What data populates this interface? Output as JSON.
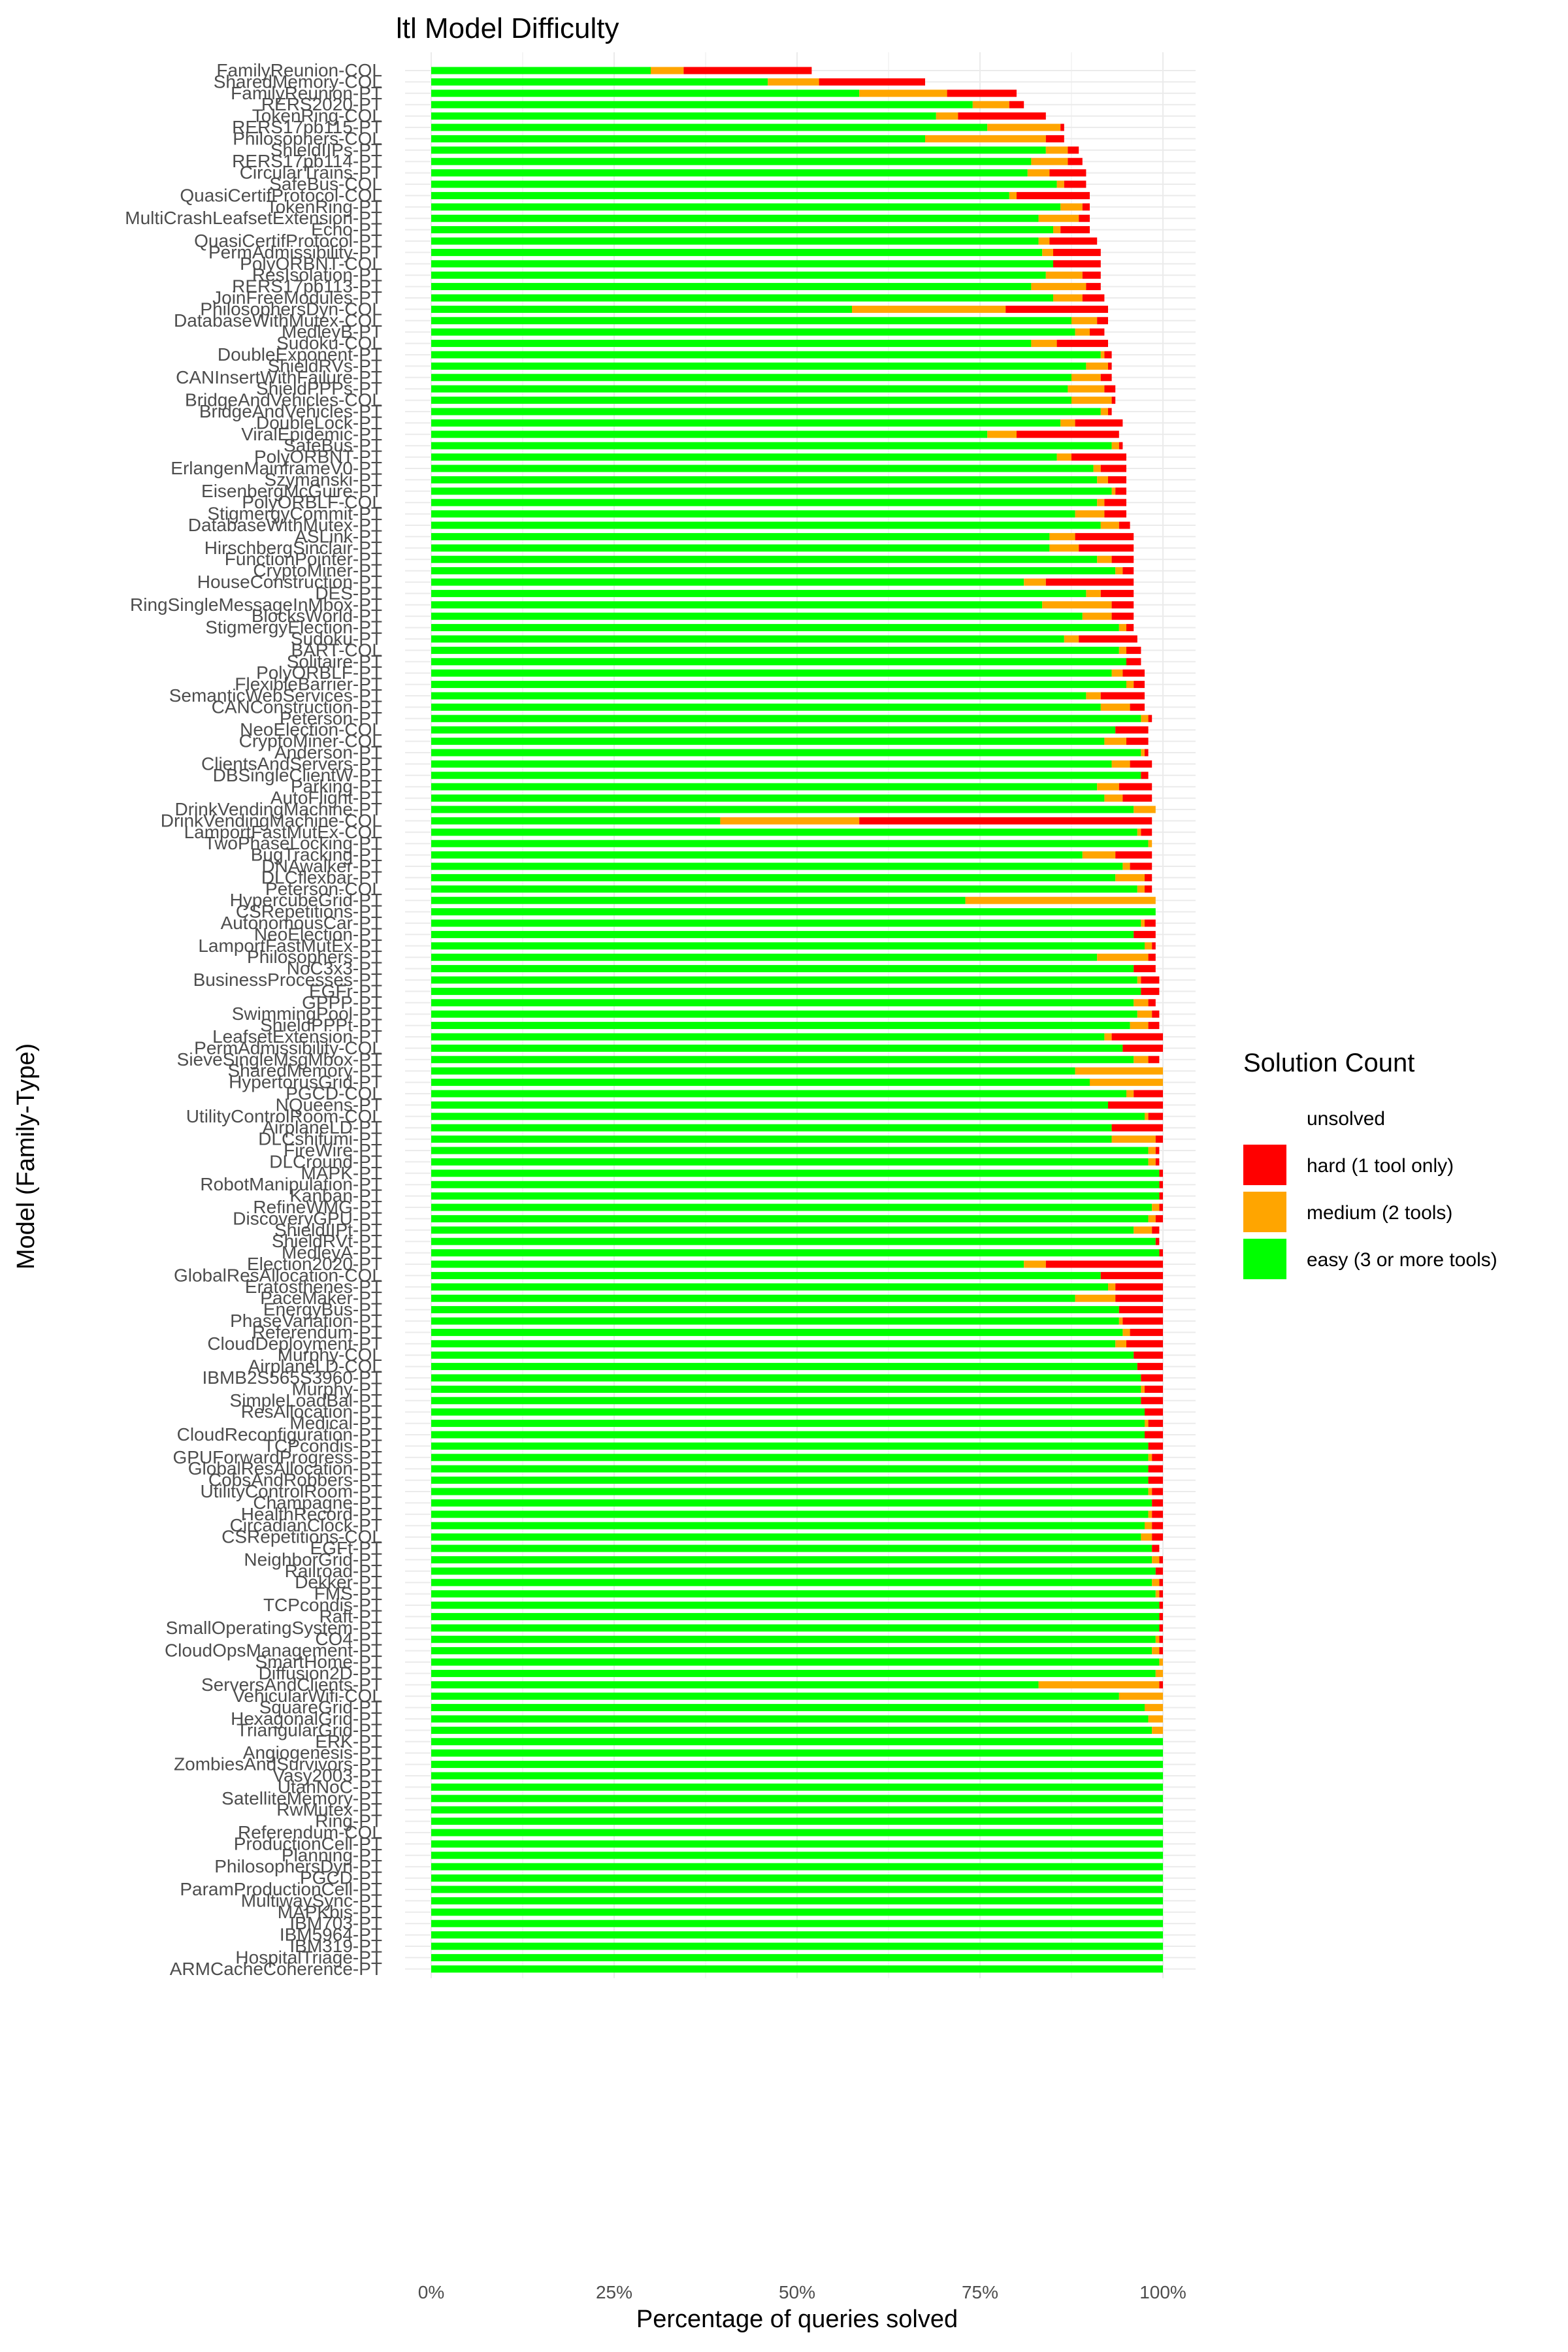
{
  "chart_data": {
    "type": "bar",
    "orientation": "horizontal",
    "stacked": true,
    "title": "ltl Model Difficulty",
    "xlabel": "Percentage of queries solved",
    "ylabel": "Model (Family-Type)",
    "xlim": [
      0,
      100
    ],
    "xticks": [
      "0%",
      "25%",
      "50%",
      "75%",
      "100%"
    ],
    "grid": true,
    "legend_position": "right",
    "legend_title": "Solution Count",
    "legend": [
      {
        "key": "unsolved",
        "label": "unsolved",
        "color": "#ffffff"
      },
      {
        "key": "hard",
        "label": "hard (1 tool only)",
        "color": "#ff0000"
      },
      {
        "key": "medium",
        "label": "medium (2 tools)",
        "color": "#ffa500"
      },
      {
        "key": "easy",
        "label": "easy (3 or more tools)",
        "color": "#00ff00"
      }
    ],
    "models": [
      {
        "name": "FamilyReunion-COL",
        "easy": 30,
        "medium": 4.5,
        "hard": 17.5
      },
      {
        "name": "SharedMemory-COL",
        "easy": 46,
        "medium": 7,
        "hard": 14.5
      },
      {
        "name": "FamilyReunion-PT",
        "easy": 58.5,
        "medium": 12,
        "hard": 9.5
      },
      {
        "name": "RERS2020-PT",
        "easy": 74,
        "medium": 5,
        "hard": 2
      },
      {
        "name": "TokenRing-COL",
        "easy": 69,
        "medium": 3,
        "hard": 12
      },
      {
        "name": "RERS17pb115-PT",
        "easy": 76,
        "medium": 10,
        "hard": 0.5
      },
      {
        "name": "Philosophers-COL",
        "easy": 67.5,
        "medium": 16.5,
        "hard": 2.5
      },
      {
        "name": "ShieldIIPs-PT",
        "easy": 84,
        "medium": 3,
        "hard": 1.5
      },
      {
        "name": "RERS17pb114-PT",
        "easy": 82,
        "medium": 5,
        "hard": 2
      },
      {
        "name": "CircularTrains-PT",
        "easy": 81.5,
        "medium": 3,
        "hard": 5
      },
      {
        "name": "SafeBus-COL",
        "easy": 85.5,
        "medium": 1,
        "hard": 3
      },
      {
        "name": "QuasiCertifProtocol-COL",
        "easy": 79,
        "medium": 1,
        "hard": 10
      },
      {
        "name": "TokenRing-PT",
        "easy": 86,
        "medium": 3,
        "hard": 1
      },
      {
        "name": "MultiCrashLeafsetExtension-PT",
        "easy": 83,
        "medium": 5.5,
        "hard": 1.5
      },
      {
        "name": "Echo-PT",
        "easy": 85,
        "medium": 1,
        "hard": 4
      },
      {
        "name": "QuasiCertifProtocol-PT",
        "easy": 83,
        "medium": 1.5,
        "hard": 6.5
      },
      {
        "name": "PermAdmissibility-PT",
        "easy": 83.5,
        "medium": 1.5,
        "hard": 6.5
      },
      {
        "name": "PolyORBNT-COL",
        "easy": 85,
        "medium": 0,
        "hard": 6.5
      },
      {
        "name": "ResIsolation-PT",
        "easy": 84,
        "medium": 5,
        "hard": 2.5
      },
      {
        "name": "RERS17pb113-PT",
        "easy": 82,
        "medium": 7.5,
        "hard": 2
      },
      {
        "name": "JoinFreeModules-PT",
        "easy": 85,
        "medium": 4,
        "hard": 3
      },
      {
        "name": "PhilosophersDyn-COL",
        "easy": 57.5,
        "medium": 21,
        "hard": 14
      },
      {
        "name": "DatabaseWithMutex-COL",
        "easy": 87.5,
        "medium": 3.5,
        "hard": 1.5
      },
      {
        "name": "MedleyB-PT",
        "easy": 88,
        "medium": 2,
        "hard": 2
      },
      {
        "name": "Sudoku-COL",
        "easy": 82,
        "medium": 3.5,
        "hard": 7
      },
      {
        "name": "DoubleExponent-PT",
        "easy": 91.5,
        "medium": 0.5,
        "hard": 1
      },
      {
        "name": "ShieldRVs-PT",
        "easy": 89.5,
        "medium": 3,
        "hard": 0.5
      },
      {
        "name": "CANInsertWithFailure-PT",
        "easy": 87.5,
        "medium": 4,
        "hard": 1.5
      },
      {
        "name": "ShieldPPPs-PT",
        "easy": 87,
        "medium": 5,
        "hard": 1.5
      },
      {
        "name": "BridgeAndVehicles-COL",
        "easy": 87.5,
        "medium": 5.5,
        "hard": 0.5
      },
      {
        "name": "BridgeAndVehicles-PT",
        "easy": 91.5,
        "medium": 1,
        "hard": 0.5
      },
      {
        "name": "DoubleLock-PT",
        "easy": 86,
        "medium": 2,
        "hard": 6.5
      },
      {
        "name": "ViralEpidemic-PT",
        "easy": 76,
        "medium": 4,
        "hard": 14
      },
      {
        "name": "SafeBus-PT",
        "easy": 93,
        "medium": 1,
        "hard": 0.5
      },
      {
        "name": "PolyORBNT-PT",
        "easy": 85.5,
        "medium": 2,
        "hard": 7.5
      },
      {
        "name": "ErlangenMainframeV0-PT",
        "easy": 90.5,
        "medium": 1,
        "hard": 3.5
      },
      {
        "name": "Szymanski-PT",
        "easy": 91,
        "medium": 1.5,
        "hard": 2.5
      },
      {
        "name": "EisenbergMcGuire-PT",
        "easy": 93,
        "medium": 0.5,
        "hard": 1.5
      },
      {
        "name": "PolyORBLF-COL",
        "easy": 91,
        "medium": 1,
        "hard": 3
      },
      {
        "name": "StigmergyCommit-PT",
        "easy": 88,
        "medium": 4,
        "hard": 3
      },
      {
        "name": "DatabaseWithMutex-PT",
        "easy": 91.5,
        "medium": 2.5,
        "hard": 1.5
      },
      {
        "name": "ASLink-PT",
        "easy": 84.5,
        "medium": 3.5,
        "hard": 8
      },
      {
        "name": "HirschbergSinclair-PT",
        "easy": 84.5,
        "medium": 4,
        "hard": 7.5
      },
      {
        "name": "FunctionPointer-PT",
        "easy": 91,
        "medium": 2,
        "hard": 3
      },
      {
        "name": "CryptoMiner-PT",
        "easy": 93.5,
        "medium": 1,
        "hard": 1.5
      },
      {
        "name": "HouseConstruction-PT",
        "easy": 81,
        "medium": 3,
        "hard": 12
      },
      {
        "name": "DES-PT",
        "easy": 89.5,
        "medium": 2,
        "hard": 4.5
      },
      {
        "name": "RingSingleMessageInMbox-PT",
        "easy": 83.5,
        "medium": 9.5,
        "hard": 3
      },
      {
        "name": "BlocksWorld-PT",
        "easy": 89,
        "medium": 4,
        "hard": 3
      },
      {
        "name": "StigmergyElection-PT",
        "easy": 94,
        "medium": 1,
        "hard": 1
      },
      {
        "name": "Sudoku-PT",
        "easy": 86.5,
        "medium": 2,
        "hard": 8
      },
      {
        "name": "BART-COL",
        "easy": 94,
        "medium": 1,
        "hard": 2
      },
      {
        "name": "Solitaire-PT",
        "easy": 95,
        "medium": 0,
        "hard": 2
      },
      {
        "name": "PolyORBLF-PT",
        "easy": 93,
        "medium": 1.5,
        "hard": 3
      },
      {
        "name": "FlexibleBarrier-PT",
        "easy": 95,
        "medium": 1,
        "hard": 1.5
      },
      {
        "name": "SemanticWebServices-PT",
        "easy": 89.5,
        "medium": 2,
        "hard": 6
      },
      {
        "name": "CANConstruction-PT",
        "easy": 91.5,
        "medium": 4,
        "hard": 2
      },
      {
        "name": "Peterson-PT",
        "easy": 97,
        "medium": 1,
        "hard": 0.5
      },
      {
        "name": "NeoElection-COL",
        "easy": 93.5,
        "medium": 0,
        "hard": 4.5
      },
      {
        "name": "CryptoMiner-COL",
        "easy": 92,
        "medium": 3,
        "hard": 3
      },
      {
        "name": "Anderson-PT",
        "easy": 97,
        "medium": 0.5,
        "hard": 0.5
      },
      {
        "name": "ClientsAndServers-PT",
        "easy": 93,
        "medium": 2.5,
        "hard": 3
      },
      {
        "name": "DBSingleClientW-PT",
        "easy": 97,
        "medium": 0,
        "hard": 1
      },
      {
        "name": "Parking-PT",
        "easy": 91,
        "medium": 3,
        "hard": 4.5
      },
      {
        "name": "AutoFlight-PT",
        "easy": 92,
        "medium": 2.5,
        "hard": 4
      },
      {
        "name": "DrinkVendingMachine-PT",
        "easy": 96,
        "medium": 3,
        "hard": 0
      },
      {
        "name": "DrinkVendingMachine-COL",
        "easy": 39.5,
        "medium": 19,
        "hard": 40
      },
      {
        "name": "LamportFastMutEx-COL",
        "easy": 96.5,
        "medium": 0.5,
        "hard": 1.5
      },
      {
        "name": "TwoPhaseLocking-PT",
        "easy": 98,
        "medium": 0.5,
        "hard": 0
      },
      {
        "name": "BugTracking-PT",
        "easy": 89,
        "medium": 4.5,
        "hard": 5
      },
      {
        "name": "DNAwalker-PT",
        "easy": 94.5,
        "medium": 1,
        "hard": 3
      },
      {
        "name": "DLCflexbar-PT",
        "easy": 93.5,
        "medium": 4,
        "hard": 1
      },
      {
        "name": "Peterson-COL",
        "easy": 96.5,
        "medium": 1,
        "hard": 1
      },
      {
        "name": "HypercubeGrid-PT",
        "easy": 73,
        "medium": 26,
        "hard": 0
      },
      {
        "name": "CSRepetitions-PT",
        "easy": 99,
        "medium": 0,
        "hard": 0
      },
      {
        "name": "AutonomousCar-PT",
        "easy": 97,
        "medium": 0.5,
        "hard": 1.5
      },
      {
        "name": "NeoElection-PT",
        "easy": 96,
        "medium": 0,
        "hard": 3
      },
      {
        "name": "LamportFastMutEx-PT",
        "easy": 97.5,
        "medium": 1,
        "hard": 0.5
      },
      {
        "name": "Philosophers-PT",
        "easy": 91,
        "medium": 7,
        "hard": 1
      },
      {
        "name": "NoC3x3-PT",
        "easy": 96,
        "medium": 0,
        "hard": 3
      },
      {
        "name": "BusinessProcesses-PT",
        "easy": 96.5,
        "medium": 0.5,
        "hard": 2.5
      },
      {
        "name": "EGFr-PT",
        "easy": 97,
        "medium": 0,
        "hard": 2.5
      },
      {
        "name": "GPPP-PT",
        "easy": 96,
        "medium": 2,
        "hard": 1
      },
      {
        "name": "SwimmingPool-PT",
        "easy": 96.5,
        "medium": 2,
        "hard": 1
      },
      {
        "name": "ShieldPPPt-PT",
        "easy": 95.5,
        "medium": 2.5,
        "hard": 1.5
      },
      {
        "name": "LeafsetExtension-PT",
        "easy": 92,
        "medium": 1,
        "hard": 7
      },
      {
        "name": "PermAdmissibility-COL",
        "easy": 94.5,
        "medium": 0,
        "hard": 5.5
      },
      {
        "name": "SieveSingleMsgMbox-PT",
        "easy": 96,
        "medium": 2,
        "hard": 1.5
      },
      {
        "name": "SharedMemory-PT",
        "easy": 88,
        "medium": 12,
        "hard": 0
      },
      {
        "name": "HypertorusGrid-PT",
        "easy": 90,
        "medium": 10,
        "hard": 0
      },
      {
        "name": "PGCD-COL",
        "easy": 95,
        "medium": 1,
        "hard": 4
      },
      {
        "name": "NQueens-PT",
        "easy": 92.5,
        "medium": 0,
        "hard": 7.5
      },
      {
        "name": "UtilityControlRoom-COL",
        "easy": 97.5,
        "medium": 0.5,
        "hard": 2
      },
      {
        "name": "AirplaneLD-PT",
        "easy": 93,
        "medium": 0,
        "hard": 7
      },
      {
        "name": "DLCshifumi-PT",
        "easy": 93,
        "medium": 6,
        "hard": 1
      },
      {
        "name": "FireWire-PT",
        "easy": 98,
        "medium": 1,
        "hard": 0.5
      },
      {
        "name": "DLCround-PT",
        "easy": 98,
        "medium": 1,
        "hard": 0.5
      },
      {
        "name": "MAPK-PT",
        "easy": 99.5,
        "medium": 0,
        "hard": 0.5
      },
      {
        "name": "RobotManipulation-PT",
        "easy": 99.5,
        "medium": 0,
        "hard": 0.5
      },
      {
        "name": "Kanban-PT",
        "easy": 99.5,
        "medium": 0,
        "hard": 0.5
      },
      {
        "name": "RefineWMG-PT",
        "easy": 98.5,
        "medium": 1,
        "hard": 0.5
      },
      {
        "name": "DiscoveryGPU-PT",
        "easy": 98,
        "medium": 1,
        "hard": 1
      },
      {
        "name": "ShieldIIPt-PT",
        "easy": 96,
        "medium": 2.5,
        "hard": 1
      },
      {
        "name": "ShieldRVt-PT",
        "easy": 99,
        "medium": 0,
        "hard": 0.5
      },
      {
        "name": "MedleyA-PT",
        "easy": 99.5,
        "medium": 0,
        "hard": 0.5
      },
      {
        "name": "Election2020-PT",
        "easy": 81,
        "medium": 3,
        "hard": 16
      },
      {
        "name": "GlobalResAllocation-COL",
        "easy": 91.5,
        "medium": 0,
        "hard": 8.5
      },
      {
        "name": "Eratosthenes-PT",
        "easy": 92.5,
        "medium": 1,
        "hard": 6.5
      },
      {
        "name": "PaceMaker-PT",
        "easy": 88,
        "medium": 5.5,
        "hard": 6.5
      },
      {
        "name": "EnergyBus-PT",
        "easy": 94,
        "medium": 0,
        "hard": 6
      },
      {
        "name": "PhaseVariation-PT",
        "easy": 94,
        "medium": 0.5,
        "hard": 5.5
      },
      {
        "name": "Referendum-PT",
        "easy": 94.5,
        "medium": 1,
        "hard": 4.5
      },
      {
        "name": "CloudDeployment-PT",
        "easy": 93.5,
        "medium": 1.5,
        "hard": 5
      },
      {
        "name": "Murphy-COL",
        "easy": 96,
        "medium": 0,
        "hard": 4
      },
      {
        "name": "AirplaneLD-COL",
        "easy": 96.5,
        "medium": 0,
        "hard": 3.5
      },
      {
        "name": "IBMB2S565S3960-PT",
        "easy": 97,
        "medium": 0,
        "hard": 3
      },
      {
        "name": "Murphy-PT",
        "easy": 97,
        "medium": 0.5,
        "hard": 2.5
      },
      {
        "name": "SimpleLoadBal-PT",
        "easy": 97,
        "medium": 0,
        "hard": 3
      },
      {
        "name": "ResAllocation-PT",
        "easy": 97.5,
        "medium": 0,
        "hard": 2.5
      },
      {
        "name": "Medical-PT",
        "easy": 97.5,
        "medium": 0.5,
        "hard": 2
      },
      {
        "name": "CloudReconfiguration-PT",
        "easy": 97.5,
        "medium": 0,
        "hard": 2.5
      },
      {
        "name": "TCPcondis-PT",
        "easy": 98,
        "medium": 0,
        "hard": 2
      },
      {
        "name": "GPUForwardProgress-PT",
        "easy": 98,
        "medium": 0.5,
        "hard": 1.5
      },
      {
        "name": "GlobalResAllocation-PT",
        "easy": 98,
        "medium": 0,
        "hard": 2
      },
      {
        "name": "CobsAndRobbers-PT",
        "easy": 98,
        "medium": 0,
        "hard": 2
      },
      {
        "name": "UtilityControlRoom-PT",
        "easy": 98,
        "medium": 0.5,
        "hard": 1.5
      },
      {
        "name": "Champagne-PT",
        "easy": 98.5,
        "medium": 0,
        "hard": 1.5
      },
      {
        "name": "HealthRecord-PT",
        "easy": 98,
        "medium": 0.5,
        "hard": 1.5
      },
      {
        "name": "CircadianClock-PT",
        "easy": 97.5,
        "medium": 1,
        "hard": 1.5
      },
      {
        "name": "CSRepetitions-COL",
        "easy": 97,
        "medium": 1.5,
        "hard": 1.5
      },
      {
        "name": "EGFt-PT",
        "easy": 98.5,
        "medium": 0,
        "hard": 1
      },
      {
        "name": "NeighborGrid-PT",
        "easy": 98.5,
        "medium": 1,
        "hard": 0.5
      },
      {
        "name": "Railroad-PT",
        "easy": 99,
        "medium": 0,
        "hard": 1
      },
      {
        "name": "Dekker-PT",
        "easy": 98.5,
        "medium": 1,
        "hard": 0.5
      },
      {
        "name": "FMS-PT",
        "easy": 99,
        "medium": 0.5,
        "hard": 0.5
      },
      {
        "name": "TCPcondis-PT",
        "easy": 99.5,
        "medium": 0,
        "hard": 0.5
      },
      {
        "name": "Raft-PT",
        "easy": 99.5,
        "medium": 0,
        "hard": 0.5
      },
      {
        "name": "SmallOperatingSystem-PT",
        "easy": 99.5,
        "medium": 0,
        "hard": 0.5
      },
      {
        "name": "CO4-PT",
        "easy": 99,
        "medium": 0.5,
        "hard": 0.5
      },
      {
        "name": "CloudOpsManagement-PT",
        "easy": 98.5,
        "medium": 1,
        "hard": 0.5
      },
      {
        "name": "SmartHome-PT",
        "easy": 99.5,
        "medium": 0.5,
        "hard": 0
      },
      {
        "name": "Diffusion2D-PT",
        "easy": 99,
        "medium": 1,
        "hard": 0
      },
      {
        "name": "ServersAndClients-PT",
        "easy": 83,
        "medium": 16.5,
        "hard": 0.5
      },
      {
        "name": "VehicularWifi-COL",
        "easy": 94,
        "medium": 6,
        "hard": 0
      },
      {
        "name": "SquareGrid-PT",
        "easy": 97.5,
        "medium": 2.5,
        "hard": 0
      },
      {
        "name": "HexagonalGrid-PT",
        "easy": 98,
        "medium": 2,
        "hard": 0
      },
      {
        "name": "TriangularGrid-PT",
        "easy": 98.5,
        "medium": 1.5,
        "hard": 0
      },
      {
        "name": "ERK-PT",
        "easy": 100,
        "medium": 0,
        "hard": 0
      },
      {
        "name": "Angiogenesis-PT",
        "easy": 100,
        "medium": 0,
        "hard": 0
      },
      {
        "name": "ZombiesAndSurvivors-PT",
        "easy": 100,
        "medium": 0,
        "hard": 0
      },
      {
        "name": "Vasy2003-PT",
        "easy": 100,
        "medium": 0,
        "hard": 0
      },
      {
        "name": "UtahNoC-PT",
        "easy": 100,
        "medium": 0,
        "hard": 0
      },
      {
        "name": "SatelliteMemory-PT",
        "easy": 100,
        "medium": 0,
        "hard": 0
      },
      {
        "name": "RwMutex-PT",
        "easy": 100,
        "medium": 0,
        "hard": 0
      },
      {
        "name": "Ring-PT",
        "easy": 100,
        "medium": 0,
        "hard": 0
      },
      {
        "name": "Referendum-COL",
        "easy": 100,
        "medium": 0,
        "hard": 0
      },
      {
        "name": "ProductionCell-PT",
        "easy": 100,
        "medium": 0,
        "hard": 0
      },
      {
        "name": "Planning-PT",
        "easy": 100,
        "medium": 0,
        "hard": 0
      },
      {
        "name": "PhilosophersDyn-PT",
        "easy": 100,
        "medium": 0,
        "hard": 0
      },
      {
        "name": "PGCD-PT",
        "easy": 100,
        "medium": 0,
        "hard": 0
      },
      {
        "name": "ParamProductionCell-PT",
        "easy": 100,
        "medium": 0,
        "hard": 0
      },
      {
        "name": "MultiwaySync-PT",
        "easy": 100,
        "medium": 0,
        "hard": 0
      },
      {
        "name": "MAPKbis-PT",
        "easy": 100,
        "medium": 0,
        "hard": 0
      },
      {
        "name": "IBM703-PT",
        "easy": 100,
        "medium": 0,
        "hard": 0
      },
      {
        "name": "IBM5964-PT",
        "easy": 100,
        "medium": 0,
        "hard": 0
      },
      {
        "name": "IBM319-PT",
        "easy": 100,
        "medium": 0,
        "hard": 0
      },
      {
        "name": "HospitalTriage-PT",
        "easy": 100,
        "medium": 0,
        "hard": 0
      },
      {
        "name": "ARMCacheCoherence-PT",
        "easy": 100,
        "medium": 0,
        "hard": 0
      }
    ]
  }
}
